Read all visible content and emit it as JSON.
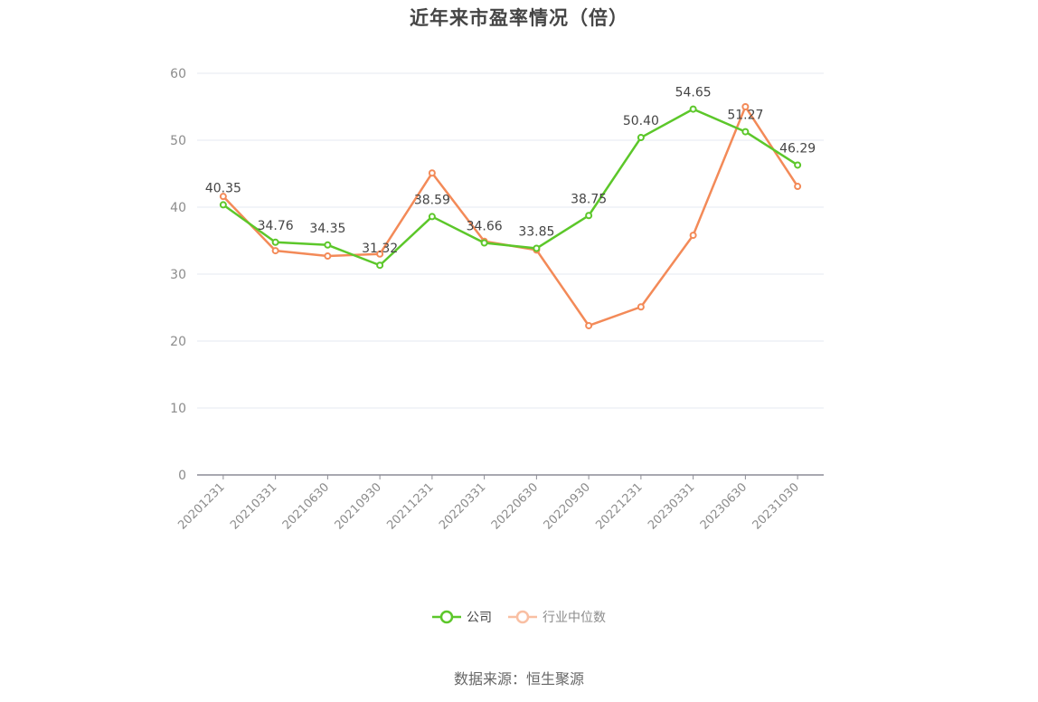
{
  "title": "近年来市盈率情况（倍）",
  "legend": {
    "company_label": "公司",
    "industry_label": "行业中位数"
  },
  "source": "数据来源：恒生聚源",
  "colors": {
    "company": "#5cc72a",
    "industry": "#f38a58",
    "industry_legend": "#f9bfa3",
    "grid": "#e6e9f0",
    "axis": "#8c8c95"
  },
  "chart_data": {
    "type": "line",
    "title": "近年来市盈率情况（倍）",
    "xlabel": "",
    "ylabel": "",
    "ylim": [
      0,
      60
    ],
    "yticks": [
      0,
      10,
      20,
      30,
      40,
      50,
      60
    ],
    "grid": true,
    "legend_position": "bottom",
    "categories": [
      "20201231",
      "20210331",
      "20210630",
      "20210930",
      "20211231",
      "20220331",
      "20220630",
      "20220930",
      "20221231",
      "20230331",
      "20230630",
      "20231030"
    ],
    "series": [
      {
        "name": "公司",
        "values": [
          40.35,
          34.76,
          34.35,
          31.32,
          38.59,
          34.66,
          33.85,
          38.75,
          50.4,
          54.65,
          51.27,
          46.29
        ],
        "labels": [
          "40.35",
          "34.76",
          "34.35",
          "31.32",
          "38.59",
          "34.66",
          "33.85",
          "38.75",
          "50.40",
          "54.65",
          "51.27",
          "46.29"
        ]
      },
      {
        "name": "行业中位数",
        "values": [
          41.6,
          33.5,
          32.7,
          33.0,
          45.1,
          34.9,
          33.6,
          22.3,
          25.1,
          35.8,
          55.0,
          43.1
        ]
      }
    ]
  }
}
